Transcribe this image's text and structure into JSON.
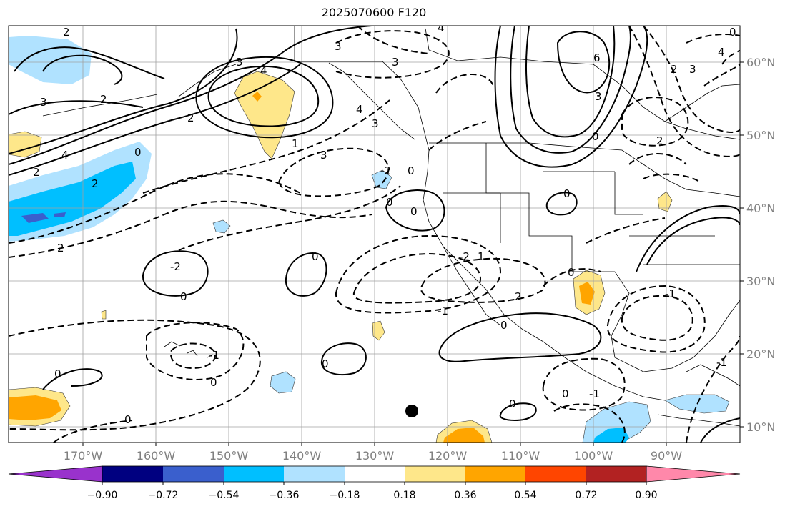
{
  "title": "2025070600 F120",
  "lon_labels": [
    "170°W",
    "160°W",
    "150°W",
    "140°W",
    "130°W",
    "120°W",
    "110°W",
    "100°W",
    "90°W"
  ],
  "lat_labels": [
    "60°N",
    "50°N",
    "40°N",
    "30°N",
    "20°N",
    "10°N"
  ],
  "colorbar": {
    "colors": [
      "#9932cc",
      "#000080",
      "#3a5fcd",
      "#00bfff",
      "#b0e2ff",
      "#ffffff",
      "#fee78a",
      "#ffa500",
      "#ff4500",
      "#b22222",
      "#ff88aa"
    ],
    "tick_labels": [
      "−0.90",
      "−0.72",
      "−0.54",
      "−0.36",
      "−0.18",
      "0.18",
      "0.36",
      "0.54",
      "0.72",
      "0.90"
    ],
    "tick_values": [
      -0.9,
      -0.72,
      -0.54,
      -0.36,
      -0.18,
      0.18,
      0.36,
      0.54,
      0.72,
      0.9
    ]
  },
  "contour_labels": [
    "2",
    "3",
    "2",
    "3",
    "4",
    "2",
    "4",
    "2",
    "0",
    "2",
    "2",
    "3",
    "4",
    "3",
    "3",
    "-2",
    "0",
    "0",
    "4",
    "1",
    "3",
    "0",
    "0",
    "-2",
    "1",
    "6",
    "3",
    "2",
    "0",
    "2",
    "3",
    "4",
    "0",
    "0",
    "0",
    "0",
    "0",
    "-2",
    "2",
    "-1",
    "0",
    "-1",
    "-1",
    "0",
    "0",
    "0",
    "0",
    "-1",
    "-1",
    "0"
  ],
  "marker": "dot"
}
